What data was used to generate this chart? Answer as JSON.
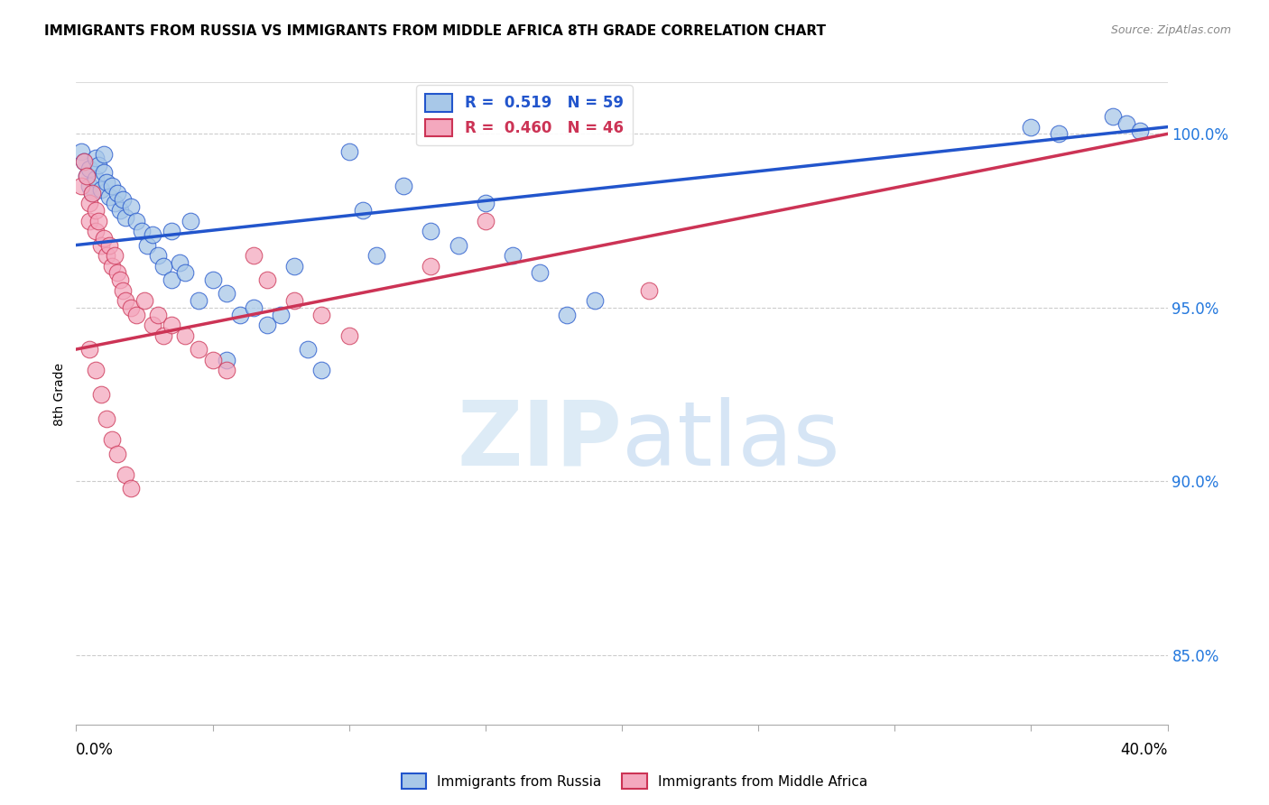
{
  "title": "IMMIGRANTS FROM RUSSIA VS IMMIGRANTS FROM MIDDLE AFRICA 8TH GRADE CORRELATION CHART",
  "source": "Source: ZipAtlas.com",
  "ylabel": "8th Grade",
  "xlim": [
    0.0,
    40.0
  ],
  "ylim": [
    83.0,
    102.0
  ],
  "y_ticks": [
    85.0,
    90.0,
    95.0,
    100.0
  ],
  "y_tick_labels": [
    "85.0%",
    "90.0%",
    "95.0%",
    "100.0%"
  ],
  "legend_blue_label": "Immigrants from Russia",
  "legend_pink_label": "Immigrants from Middle Africa",
  "R_blue": 0.519,
  "N_blue": 59,
  "R_pink": 0.46,
  "N_pink": 46,
  "color_blue": "#A8C8E8",
  "color_pink": "#F4A8BE",
  "trendline_blue": "#2255CC",
  "trendline_pink": "#CC3355",
  "watermark_zip": "ZIP",
  "watermark_atlas": "atlas",
  "blue_points": [
    [
      0.2,
      99.5
    ],
    [
      0.3,
      99.2
    ],
    [
      0.4,
      98.8
    ],
    [
      0.5,
      99.0
    ],
    [
      0.5,
      98.5
    ],
    [
      0.6,
      98.3
    ],
    [
      0.7,
      99.3
    ],
    [
      0.7,
      98.7
    ],
    [
      0.8,
      99.1
    ],
    [
      0.9,
      98.4
    ],
    [
      1.0,
      99.4
    ],
    [
      1.0,
      98.9
    ],
    [
      1.1,
      98.6
    ],
    [
      1.2,
      98.2
    ],
    [
      1.3,
      98.5
    ],
    [
      1.4,
      98.0
    ],
    [
      1.5,
      98.3
    ],
    [
      1.6,
      97.8
    ],
    [
      1.7,
      98.1
    ],
    [
      1.8,
      97.6
    ],
    [
      2.0,
      97.9
    ],
    [
      2.2,
      97.5
    ],
    [
      2.4,
      97.2
    ],
    [
      2.6,
      96.8
    ],
    [
      2.8,
      97.1
    ],
    [
      3.0,
      96.5
    ],
    [
      3.2,
      96.2
    ],
    [
      3.5,
      95.8
    ],
    [
      3.8,
      96.3
    ],
    [
      4.0,
      96.0
    ],
    [
      4.5,
      95.2
    ],
    [
      5.0,
      95.8
    ],
    [
      5.5,
      95.4
    ],
    [
      6.0,
      94.8
    ],
    [
      6.5,
      95.0
    ],
    [
      7.0,
      94.5
    ],
    [
      7.5,
      94.8
    ],
    [
      8.0,
      96.2
    ],
    [
      8.5,
      93.8
    ],
    [
      9.0,
      93.2
    ],
    [
      3.5,
      97.2
    ],
    [
      4.2,
      97.5
    ],
    [
      10.0,
      99.5
    ],
    [
      10.5,
      97.8
    ],
    [
      11.0,
      96.5
    ],
    [
      12.0,
      98.5
    ],
    [
      13.0,
      97.2
    ],
    [
      14.0,
      96.8
    ],
    [
      15.0,
      98.0
    ],
    [
      16.0,
      96.5
    ],
    [
      17.0,
      96.0
    ],
    [
      18.0,
      94.8
    ],
    [
      19.0,
      95.2
    ],
    [
      5.5,
      93.5
    ],
    [
      35.0,
      100.2
    ],
    [
      36.0,
      100.0
    ],
    [
      38.0,
      100.5
    ],
    [
      38.5,
      100.3
    ],
    [
      39.0,
      100.1
    ]
  ],
  "pink_points": [
    [
      0.2,
      98.5
    ],
    [
      0.3,
      99.2
    ],
    [
      0.4,
      98.8
    ],
    [
      0.5,
      98.0
    ],
    [
      0.5,
      97.5
    ],
    [
      0.6,
      98.3
    ],
    [
      0.7,
      97.8
    ],
    [
      0.7,
      97.2
    ],
    [
      0.8,
      97.5
    ],
    [
      0.9,
      96.8
    ],
    [
      1.0,
      97.0
    ],
    [
      1.1,
      96.5
    ],
    [
      1.2,
      96.8
    ],
    [
      1.3,
      96.2
    ],
    [
      1.4,
      96.5
    ],
    [
      1.5,
      96.0
    ],
    [
      1.6,
      95.8
    ],
    [
      1.7,
      95.5
    ],
    [
      1.8,
      95.2
    ],
    [
      2.0,
      95.0
    ],
    [
      2.2,
      94.8
    ],
    [
      2.5,
      95.2
    ],
    [
      2.8,
      94.5
    ],
    [
      3.0,
      94.8
    ],
    [
      3.2,
      94.2
    ],
    [
      3.5,
      94.5
    ],
    [
      4.0,
      94.2
    ],
    [
      4.5,
      93.8
    ],
    [
      5.0,
      93.5
    ],
    [
      5.5,
      93.2
    ],
    [
      0.5,
      93.8
    ],
    [
      0.7,
      93.2
    ],
    [
      0.9,
      92.5
    ],
    [
      1.1,
      91.8
    ],
    [
      1.3,
      91.2
    ],
    [
      1.5,
      90.8
    ],
    [
      1.8,
      90.2
    ],
    [
      2.0,
      89.8
    ],
    [
      6.5,
      96.5
    ],
    [
      7.0,
      95.8
    ],
    [
      8.0,
      95.2
    ],
    [
      9.0,
      94.8
    ],
    [
      10.0,
      94.2
    ],
    [
      13.0,
      96.2
    ],
    [
      15.0,
      97.5
    ],
    [
      21.0,
      95.5
    ]
  ]
}
